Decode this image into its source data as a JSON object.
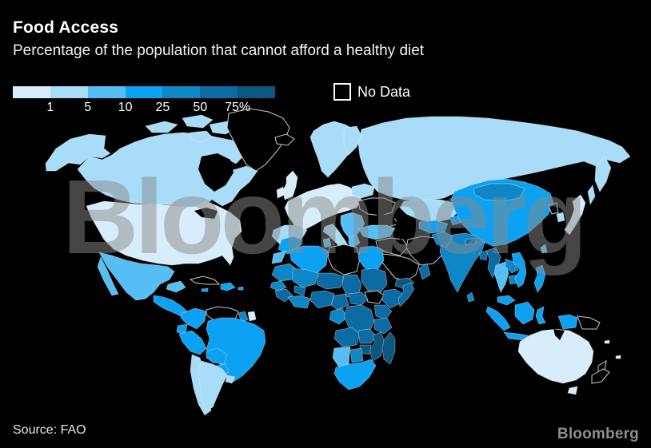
{
  "page": {
    "background": "#000000"
  },
  "header": {
    "title": "Food Access",
    "subtitle": "Percentage of the population that cannot afford a healthy diet"
  },
  "legend": {
    "tick_labels": [
      "1",
      "5",
      "10",
      "25",
      "50",
      "75%"
    ],
    "no_data_label": "No Data",
    "palette": [
      "#d8edfb",
      "#a9dcf9",
      "#55bff5",
      "#0ca1f2",
      "#0f86c6",
      "#0d6ba4",
      "#0c577f"
    ],
    "no_data_color": "#000000",
    "no_data_border": "#ffffff",
    "country_border": "rgba(255,255,255,0.45)",
    "no_data_outline": "#c9c9c9"
  },
  "watermark": {
    "text": "Bloomberg",
    "color": "#8a8a8a"
  },
  "footer": {
    "source": "Source: FAO",
    "brand": "Bloomberg"
  },
  "chart_data": {
    "type": "choropleth",
    "title": "Food Access",
    "metric": "Percentage of the population that cannot afford a healthy diet",
    "unit": "%",
    "scale_ticks_percent": [
      1,
      5,
      10,
      25,
      50,
      75
    ],
    "bins": [
      "<1",
      "1-5",
      "5-10",
      "10-25",
      "25-50",
      "50-75",
      ">75"
    ],
    "source": "FAO",
    "legend_position": "top-left",
    "regions": {
      "alaska": 2,
      "canada": 2,
      "arctic_islands": 2,
      "greenland": "no_data",
      "usa": 1,
      "mexico": 3,
      "central_america": 4,
      "cuba": "no_data",
      "hispaniola": 4,
      "jamaica": 4,
      "puerto_rico": 4,
      "colombia": 4,
      "venezuela": "no_data",
      "guyana": 5,
      "suriname": 1,
      "ecuador": 4,
      "peru": 4,
      "brazil": 4,
      "bolivia": 4,
      "paraguay": 4,
      "chile": 2,
      "argentina": 2,
      "uruguay": 2,
      "iceland": "no_data",
      "uk": 1,
      "ireland": 1,
      "norway_sweden": 2,
      "finland": 2,
      "western_europe": 1,
      "iberia": 2,
      "italy": 2,
      "balkans": 3,
      "greece": 3,
      "ukraine": "no_data",
      "belarus_baltics": 2,
      "russia": 2,
      "kazakhstan": 2,
      "uzbekistan_turkmenistan": 4,
      "kyrgyzstan": 4,
      "caucasus": "no_data",
      "turkey": 3,
      "syria_iraq": "no_data",
      "iran": "no_data",
      "afghanistan": "no_data",
      "saudi_arabia": "no_data",
      "yemen": 7,
      "oman": 6,
      "india": 5,
      "pakistan": 5,
      "nepal": 6,
      "bangladesh": 6,
      "sri_lanka": 5,
      "myanmar": 6,
      "thailand": 3,
      "laos": 5,
      "cambodia": 5,
      "vietnam": 4,
      "malaysia": 4,
      "china": 4,
      "mongolia": 5,
      "north_korea": "no_data",
      "south_korea": 2,
      "japan": 1,
      "taiwan": 3,
      "philippines": 4,
      "indonesia": 4,
      "papua_new_guinea": "no_data",
      "morocco": 4,
      "western_sahara": 3,
      "algeria": 4,
      "tunisia": 3,
      "libya": "no_data",
      "egypt": 4,
      "mauritania": 5,
      "mali": 5,
      "niger": 6,
      "chad": 6,
      "sudan": 6,
      "south_sudan": "no_data",
      "ethiopia": 6,
      "somalia": 6,
      "senegal": 5,
      "guinea": 6,
      "cote_divoire_ghana": 5,
      "burkina_faso": 6,
      "nigeria": 6,
      "cameroon": 6,
      "central_african_republic": 6,
      "gabon_congo": 5,
      "dr_congo": 6,
      "uganda_kenya": 6,
      "tanzania": 6,
      "angola": 6,
      "zambia": 6,
      "mozambique": 7,
      "zimbabwe": 7,
      "namibia": 3,
      "botswana": 5,
      "south_africa": 4,
      "madagascar": 7,
      "australia": 1,
      "new_zealand": "no_data",
      "pacific_islands": 1
    }
  }
}
